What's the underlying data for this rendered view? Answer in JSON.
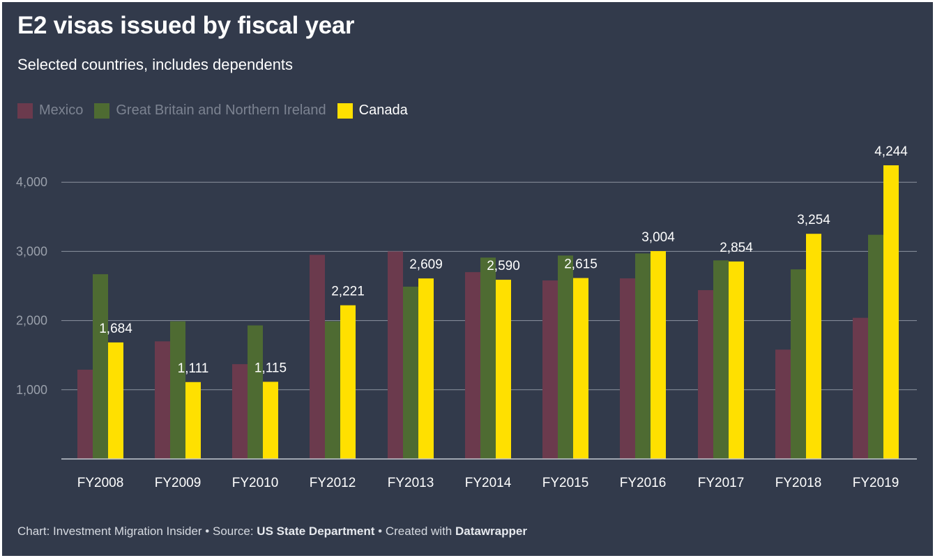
{
  "title": "E2 visas issued by fiscal year",
  "subtitle": "Selected countries, includes dependents",
  "footer": {
    "chart_prefix": "Chart: ",
    "chart_by": "Investment Migration Insider",
    "separator": " • ",
    "source_prefix": "Source: ",
    "source": "US State Department",
    "created_prefix": "Created with ",
    "created_with": "Datawrapper"
  },
  "colors": {
    "background": "#323a4b",
    "mexico": "#6b3a4d",
    "great_britain": "#4e6b32",
    "canada": "#ffe000",
    "gridline": "#8d93a0",
    "axis_text": "#9aa0ab",
    "category_text": "#ffffff",
    "legend_muted": "#7c8391"
  },
  "chart_data": {
    "type": "bar",
    "categories": [
      "FY2008",
      "FY2009",
      "FY2010",
      "FY2012",
      "FY2013",
      "FY2014",
      "FY2015",
      "FY2016",
      "FY2017",
      "FY2018",
      "FY2019"
    ],
    "series": [
      {
        "name": "Mexico",
        "values": [
          1290,
          1700,
          1370,
          2950,
          3000,
          2700,
          2580,
          2610,
          2440,
          1580,
          2040
        ]
      },
      {
        "name": "Great Britain and Northern Ireland",
        "values": [
          2670,
          1990,
          1930,
          1990,
          2490,
          2910,
          2940,
          2970,
          2870,
          2740,
          3240
        ]
      },
      {
        "name": "Canada",
        "values": [
          1684,
          1111,
          1115,
          2221,
          2609,
          2590,
          2615,
          3004,
          2854,
          3254,
          4244
        ],
        "labels": [
          "1,684",
          "1,111",
          "1,115",
          "2,221",
          "2,609",
          "2,590",
          "2,615",
          "3,004",
          "2,854",
          "3,254",
          "4,244"
        ]
      }
    ],
    "yticks": [
      1000,
      2000,
      3000,
      4000
    ],
    "ytick_labels": [
      "1,000",
      "2,000",
      "3,000",
      "4,000"
    ],
    "ylim": [
      0,
      4244
    ],
    "grid": true,
    "legend_position": "top-left",
    "highlighted_series": "Canada"
  }
}
